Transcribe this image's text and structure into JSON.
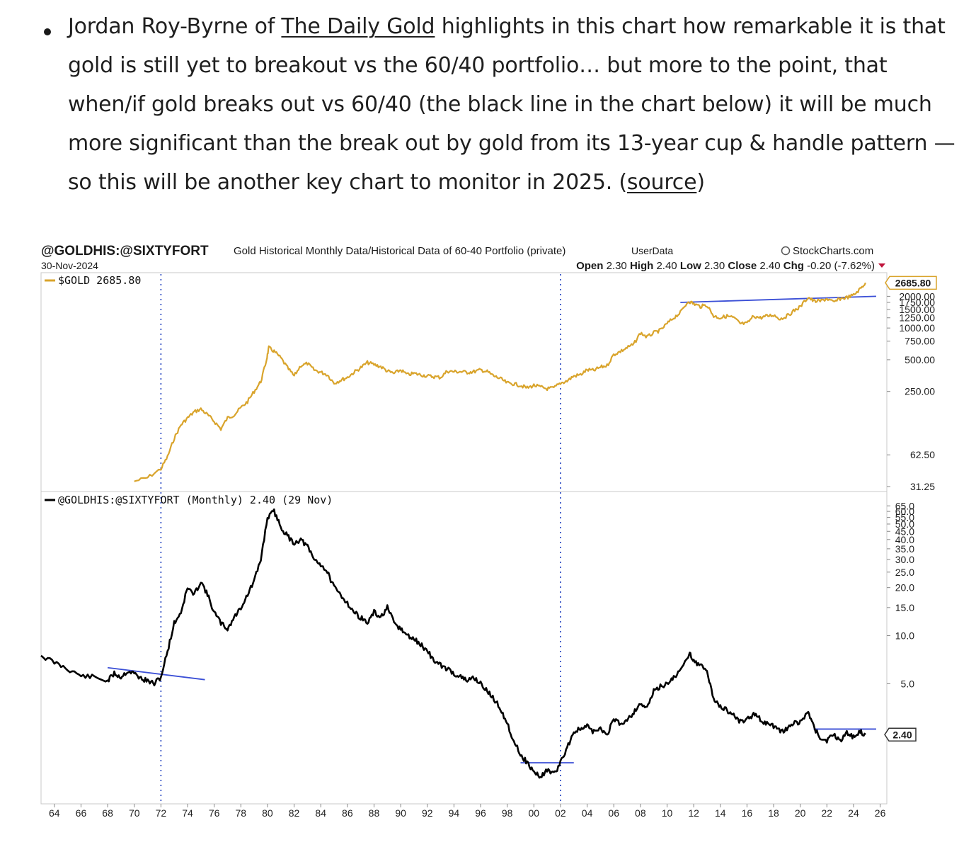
{
  "paragraph": {
    "part1": "Jordan Roy-Byrne of ",
    "link_text": "The Daily Gold",
    "part2": " highlights in this chart how remarkable it is that gold is still yet to breakout vs the 60/40 portfolio… but more to the point, that when/if gold breaks out vs 60/40 (the black line in the chart below) it will be much more significant than the break out by gold from its 13-year cup & handle pattern — so this will be another key chart to monitor in 2025. (",
    "source_text": "source",
    "part3": ")"
  },
  "chart_header": {
    "symbol": "@GOLDHIS:@SIXTYFORT",
    "description": "Gold Historical Monthly Data/Historical Data of 60-40 Portfolio (private)",
    "userdata": "UserData",
    "watermark": "StockCharts.com",
    "date": "30-Nov-2024",
    "ohlc": {
      "open_label": "Open",
      "open": "2.30",
      "high_label": "High",
      "high": "2.40",
      "low_label": "Low",
      "low": "2.30",
      "close_label": "Close",
      "close": "2.40",
      "chg_label": "Chg",
      "chg": "-0.20 (-7.62%)"
    }
  },
  "chart_data": [
    {
      "type": "line",
      "panel": "top",
      "series": [
        {
          "name": "$GOLD 2685.80",
          "color": "#d9a42c"
        }
      ],
      "x_range": [
        1963.0,
        2026.5
      ],
      "y_scale": "log",
      "ylim": [
        31.25,
        2700
      ],
      "y_ticks": [
        "2685.80",
        "2000.00",
        "1750.00",
        "1500.00",
        "1250.00",
        "1000.00",
        "750.00",
        "500.00",
        "250.00",
        "62.50",
        "31.25"
      ],
      "last_value_label": "2685.80",
      "points": [
        [
          1970.0,
          35
        ],
        [
          1971.0,
          38
        ],
        [
          1972.0,
          46
        ],
        [
          1972.5,
          60
        ],
        [
          1973.0,
          90
        ],
        [
          1973.5,
          120
        ],
        [
          1974.0,
          140
        ],
        [
          1974.5,
          160
        ],
        [
          1975.0,
          170
        ],
        [
          1975.5,
          150
        ],
        [
          1976.0,
          130
        ],
        [
          1976.5,
          110
        ],
        [
          1977.0,
          140
        ],
        [
          1977.5,
          150
        ],
        [
          1978.0,
          175
        ],
        [
          1978.5,
          200
        ],
        [
          1979.0,
          250
        ],
        [
          1979.5,
          310
        ],
        [
          1979.9,
          480
        ],
        [
          1980.1,
          650
        ],
        [
          1980.5,
          600
        ],
        [
          1981.0,
          520
        ],
        [
          1981.5,
          420
        ],
        [
          1982.0,
          350
        ],
        [
          1982.5,
          440
        ],
        [
          1983.0,
          460
        ],
        [
          1983.5,
          400
        ],
        [
          1984.0,
          380
        ],
        [
          1984.5,
          360
        ],
        [
          1985.0,
          300
        ],
        [
          1985.5,
          320
        ],
        [
          1986.0,
          340
        ],
        [
          1986.5,
          380
        ],
        [
          1987.0,
          420
        ],
        [
          1987.5,
          470
        ],
        [
          1988.0,
          450
        ],
        [
          1988.5,
          430
        ],
        [
          1989.0,
          390
        ],
        [
          1989.5,
          370
        ],
        [
          1990.0,
          400
        ],
        [
          1990.5,
          360
        ],
        [
          1991.0,
          370
        ],
        [
          1991.5,
          360
        ],
        [
          1992.0,
          350
        ],
        [
          1992.5,
          345
        ],
        [
          1993.0,
          340
        ],
        [
          1993.5,
          390
        ],
        [
          1994.0,
          385
        ],
        [
          1994.5,
          385
        ],
        [
          1995.0,
          380
        ],
        [
          1995.5,
          385
        ],
        [
          1996.0,
          400
        ],
        [
          1996.5,
          385
        ],
        [
          1997.0,
          350
        ],
        [
          1997.5,
          330
        ],
        [
          1998.0,
          300
        ],
        [
          1998.5,
          295
        ],
        [
          1999.0,
          285
        ],
        [
          1999.5,
          270
        ],
        [
          2000.0,
          285
        ],
        [
          2000.5,
          275
        ],
        [
          2001.0,
          265
        ],
        [
          2001.5,
          270
        ],
        [
          2002.0,
          300
        ],
        [
          2002.5,
          315
        ],
        [
          2003.0,
          350
        ],
        [
          2003.5,
          360
        ],
        [
          2004.0,
          400
        ],
        [
          2004.5,
          395
        ],
        [
          2005.0,
          425
        ],
        [
          2005.5,
          440
        ],
        [
          2006.0,
          560
        ],
        [
          2006.5,
          600
        ],
        [
          2007.0,
          650
        ],
        [
          2007.5,
          700
        ],
        [
          2008.0,
          900
        ],
        [
          2008.5,
          820
        ],
        [
          2009.0,
          900
        ],
        [
          2009.5,
          950
        ],
        [
          2010.0,
          1100
        ],
        [
          2010.5,
          1250
        ],
        [
          2011.0,
          1400
        ],
        [
          2011.6,
          1800
        ],
        [
          2012.0,
          1700
        ],
        [
          2012.5,
          1600
        ],
        [
          2013.0,
          1650
        ],
        [
          2013.5,
          1300
        ],
        [
          2014.0,
          1250
        ],
        [
          2014.5,
          1300
        ],
        [
          2015.0,
          1250
        ],
        [
          2015.5,
          1100
        ],
        [
          2016.0,
          1100
        ],
        [
          2016.5,
          1300
        ],
        [
          2017.0,
          1250
        ],
        [
          2017.5,
          1300
        ],
        [
          2018.0,
          1330
        ],
        [
          2018.5,
          1220
        ],
        [
          2019.0,
          1300
        ],
        [
          2019.5,
          1450
        ],
        [
          2020.0,
          1590
        ],
        [
          2020.6,
          1970
        ],
        [
          2021.0,
          1800
        ],
        [
          2021.5,
          1800
        ],
        [
          2022.0,
          1900
        ],
        [
          2022.5,
          1750
        ],
        [
          2023.0,
          1900
        ],
        [
          2023.5,
          1950
        ],
        [
          2024.0,
          2050
        ],
        [
          2024.5,
          2350
        ],
        [
          2024.9,
          2685.8
        ]
      ],
      "trendline": {
        "from": [
          2011.0,
          1750
        ],
        "to": [
          2025.7,
          2000
        ]
      },
      "vertical_markers": [
        1972.0,
        2002.0
      ]
    },
    {
      "type": "line",
      "panel": "bottom",
      "series": [
        {
          "name": "@GOLDHIS:@SIXTYFORT (Monthly) 2.40 (29 Nov)",
          "color": "#000000"
        }
      ],
      "x_range": [
        1963.0,
        2026.5
      ],
      "x_ticks": [
        "64",
        "66",
        "68",
        "70",
        "72",
        "74",
        "76",
        "78",
        "80",
        "82",
        "84",
        "86",
        "88",
        "90",
        "92",
        "94",
        "96",
        "98",
        "00",
        "02",
        "04",
        "06",
        "08",
        "10",
        "12",
        "14",
        "16",
        "18",
        "20",
        "22",
        "24",
        "26"
      ],
      "y_scale": "log",
      "ylim": [
        1.0,
        70
      ],
      "y_ticks": [
        "65.0",
        "60.0",
        "55.0",
        "50.0",
        "45.0",
        "40.0",
        "35.0",
        "30.0",
        "25.0",
        "20.0",
        "15.0",
        "10.0",
        "5.0"
      ],
      "last_value_label": "2.40",
      "points": [
        [
          1963.0,
          7.5
        ],
        [
          1964.0,
          6.8
        ],
        [
          1965.0,
          6.2
        ],
        [
          1966.0,
          5.6
        ],
        [
          1967.0,
          5.5
        ],
        [
          1968.0,
          5.2
        ],
        [
          1968.5,
          5.8
        ],
        [
          1969.0,
          5.5
        ],
        [
          1969.5,
          6.0
        ],
        [
          1970.0,
          5.8
        ],
        [
          1970.5,
          5.4
        ],
        [
          1971.0,
          5.2
        ],
        [
          1971.5,
          5.0
        ],
        [
          1972.0,
          5.5
        ],
        [
          1972.5,
          8.0
        ],
        [
          1973.0,
          12.0
        ],
        [
          1973.5,
          14.0
        ],
        [
          1974.0,
          20.0
        ],
        [
          1974.5,
          18.0
        ],
        [
          1975.0,
          22.0
        ],
        [
          1975.5,
          18.0
        ],
        [
          1976.0,
          14.0
        ],
        [
          1976.5,
          12.0
        ],
        [
          1977.0,
          11.0
        ],
        [
          1977.5,
          13.0
        ],
        [
          1978.0,
          15.0
        ],
        [
          1978.5,
          18.0
        ],
        [
          1979.0,
          22.0
        ],
        [
          1979.5,
          30.0
        ],
        [
          1980.0,
          55.0
        ],
        [
          1980.5,
          60.0
        ],
        [
          1981.0,
          48.0
        ],
        [
          1981.5,
          42.0
        ],
        [
          1982.0,
          38.0
        ],
        [
          1982.5,
          40.0
        ],
        [
          1983.0,
          36.0
        ],
        [
          1983.5,
          30.0
        ],
        [
          1984.0,
          28.0
        ],
        [
          1984.5,
          25.0
        ],
        [
          1985.0,
          20.0
        ],
        [
          1985.5,
          18.0
        ],
        [
          1986.0,
          16.0
        ],
        [
          1986.5,
          14.0
        ],
        [
          1987.0,
          13.0
        ],
        [
          1987.5,
          12.0
        ],
        [
          1988.0,
          14.0
        ],
        [
          1988.5,
          13.0
        ],
        [
          1989.0,
          15.0
        ],
        [
          1989.5,
          12.0
        ],
        [
          1990.0,
          11.0
        ],
        [
          1990.5,
          10.0
        ],
        [
          1991.0,
          9.5
        ],
        [
          1991.5,
          8.8
        ],
        [
          1992.0,
          8.0
        ],
        [
          1992.5,
          7.0
        ],
        [
          1993.0,
          6.5
        ],
        [
          1993.5,
          6.2
        ],
        [
          1994.0,
          5.8
        ],
        [
          1994.5,
          5.5
        ],
        [
          1995.0,
          5.2
        ],
        [
          1995.5,
          5.5
        ],
        [
          1996.0,
          5.0
        ],
        [
          1996.5,
          4.5
        ],
        [
          1997.0,
          4.0
        ],
        [
          1997.5,
          3.5
        ],
        [
          1998.0,
          2.8
        ],
        [
          1998.5,
          2.2
        ],
        [
          1999.0,
          1.8
        ],
        [
          1999.5,
          1.6
        ],
        [
          2000.0,
          1.4
        ],
        [
          2000.5,
          1.3
        ],
        [
          2001.0,
          1.45
        ],
        [
          2001.5,
          1.35
        ],
        [
          2002.0,
          1.6
        ],
        [
          2002.5,
          2.0
        ],
        [
          2003.0,
          2.5
        ],
        [
          2003.5,
          2.6
        ],
        [
          2004.0,
          2.7
        ],
        [
          2004.5,
          2.5
        ],
        [
          2005.0,
          2.6
        ],
        [
          2005.5,
          2.4
        ],
        [
          2006.0,
          3.0
        ],
        [
          2006.5,
          2.8
        ],
        [
          2007.0,
          3.0
        ],
        [
          2007.5,
          3.3
        ],
        [
          2008.0,
          3.8
        ],
        [
          2008.5,
          3.5
        ],
        [
          2009.0,
          4.5
        ],
        [
          2009.5,
          4.8
        ],
        [
          2010.0,
          5.0
        ],
        [
          2010.5,
          5.5
        ],
        [
          2011.0,
          6.0
        ],
        [
          2011.7,
          7.8
        ],
        [
          2012.0,
          7.0
        ],
        [
          2012.5,
          6.5
        ],
        [
          2013.0,
          6.0
        ],
        [
          2013.5,
          4.0
        ],
        [
          2014.0,
          3.6
        ],
        [
          2014.5,
          3.4
        ],
        [
          2015.0,
          3.2
        ],
        [
          2015.5,
          2.9
        ],
        [
          2016.0,
          3.0
        ],
        [
          2016.5,
          3.2
        ],
        [
          2017.0,
          3.0
        ],
        [
          2017.5,
          2.8
        ],
        [
          2018.0,
          2.7
        ],
        [
          2018.5,
          2.5
        ],
        [
          2019.0,
          2.6
        ],
        [
          2019.5,
          2.8
        ],
        [
          2020.0,
          2.9
        ],
        [
          2020.6,
          3.3
        ],
        [
          2021.0,
          2.7
        ],
        [
          2021.5,
          2.3
        ],
        [
          2022.0,
          2.2
        ],
        [
          2022.5,
          2.4
        ],
        [
          2023.0,
          2.2
        ],
        [
          2023.5,
          2.5
        ],
        [
          2024.0,
          2.3
        ],
        [
          2024.5,
          2.5
        ],
        [
          2024.9,
          2.4
        ]
      ],
      "trendlines": [
        {
          "from": [
            1968.0,
            6.3
          ],
          "to": [
            1975.3,
            5.3
          ]
        },
        {
          "from": [
            1999.0,
            1.6
          ],
          "to": [
            2003.0,
            1.6
          ]
        },
        {
          "from": [
            2021.0,
            2.6
          ],
          "to": [
            2025.7,
            2.6
          ]
        }
      ],
      "vertical_markers": [
        1972.0,
        2002.0
      ]
    }
  ],
  "colors": {
    "gold": "#d9a42c",
    "ratio": "#000000",
    "trendline": "#3b4fd6",
    "marker": "#1f3fbf",
    "chg_arrow": "#c0143c"
  }
}
